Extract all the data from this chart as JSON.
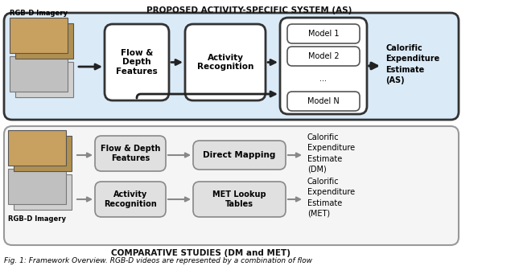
{
  "title_top": "PROPOSED ACTIVITY-SPECIFIC SYSTEM (AS)",
  "title_bottom": "COMPARATIVE STUDIES (DM and MET)",
  "caption": "Fig. 1: Framework Overview. RGB-D videos are represented by a combination of flow",
  "bg_color": "#ffffff",
  "top_outer_box_color": "#daeaf7",
  "top_outer_box_edge": "#333333",
  "bottom_outer_box_color": "#f5f5f5",
  "bottom_outer_box_edge": "#999999",
  "label_color": "#111111",
  "label_rgb_top": "RGB-D Imagery",
  "label_rgb_bottom": "RGB-D Imagery",
  "box1_top": "Flow &\nDepth\nFeatures",
  "box2_top": "Activity\nRecognition",
  "model1": "Model 1",
  "model2": "Model 2",
  "dots": "...",
  "modelN": "Model N",
  "calorific_top_line1": "Calorific",
  "calorific_top_line2": "Expenditure",
  "calorific_top_line3": "Estimate",
  "calorific_top_line4": "(AS)",
  "box1_bottom_top": "Flow & Depth\nFeatures",
  "box2_bottom_top": "Direct Mapping",
  "calorific_dm_line1": "Calorific",
  "calorific_dm_line2": "Expenditure",
  "calorific_dm_line3": "Estimate",
  "calorific_dm_line4": "(DM)",
  "box1_bottom_bot": "Activity\nRecognition",
  "box2_bottom_bot": "MET Lookup\nTables",
  "calorific_met_line1": "Calorific",
  "calorific_met_line2": "Expenditure",
  "calorific_met_line3": "Estimate",
  "calorific_met_line4": "(MET)"
}
